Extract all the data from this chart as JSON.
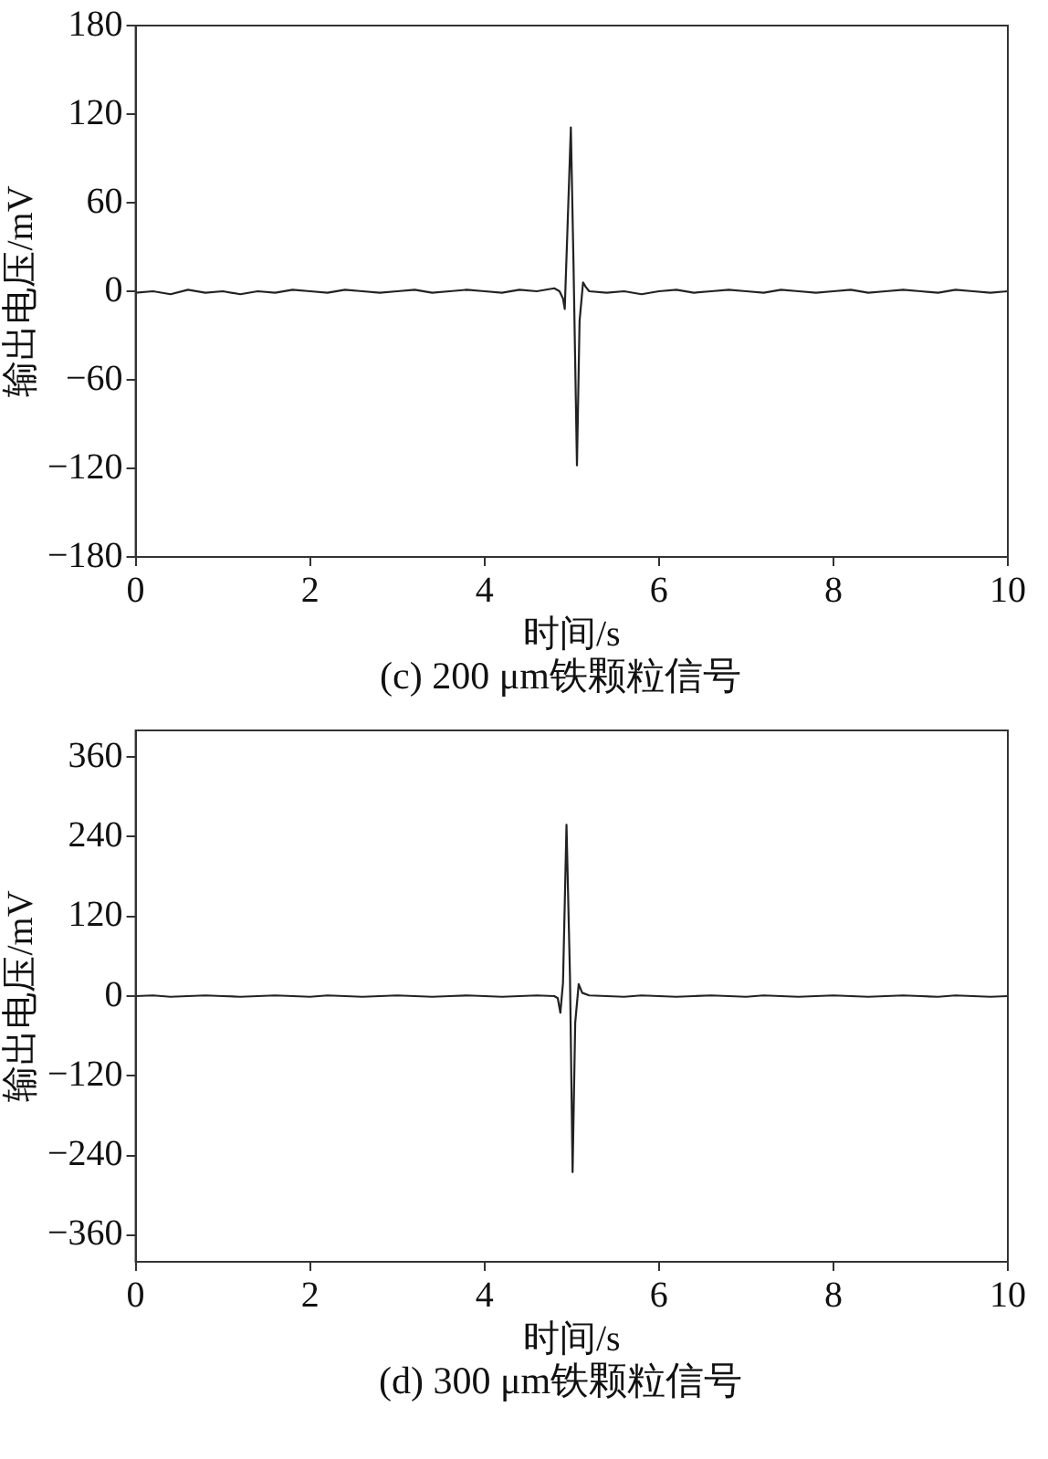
{
  "chart_data": [
    {
      "type": "line",
      "title": "(c) 200 μm铁颗粒信号",
      "xlabel": "时间/s",
      "ylabel": "输出电压/mV",
      "xlim": [
        0,
        10
      ],
      "xticks": [
        0,
        2,
        4,
        6,
        8,
        10
      ],
      "ylim": [
        -180,
        180
      ],
      "yticks": [
        -180,
        -120,
        -60,
        0,
        60,
        120,
        180
      ],
      "grid": false,
      "legend": false,
      "marker": "none",
      "line_style": "solid",
      "series": [
        {
          "color": "#222222",
          "x": [
            0,
            0.2,
            0.4,
            0.6,
            0.8,
            1,
            1.2,
            1.4,
            1.6,
            1.8,
            2,
            2.2,
            2.4,
            2.6,
            2.8,
            3,
            3.2,
            3.4,
            3.6,
            3.8,
            4,
            4.2,
            4.4,
            4.6,
            4.8,
            4.86,
            4.9,
            4.92,
            4.95,
            4.99,
            5.02,
            5.06,
            5.09,
            5.13,
            5.16,
            5.2,
            5.4,
            5.6,
            5.8,
            6,
            6.2,
            6.4,
            6.6,
            6.8,
            7,
            7.2,
            7.4,
            7.6,
            7.8,
            8,
            8.2,
            8.4,
            8.6,
            8.8,
            9,
            9.2,
            9.4,
            9.6,
            9.8,
            10
          ],
          "values": [
            -1,
            0,
            -2,
            1,
            -1,
            0,
            -2,
            0,
            -1,
            1,
            0,
            -1,
            1,
            0,
            -1,
            0,
            1,
            -1,
            0,
            1,
            0,
            -1,
            1,
            0,
            2,
            0,
            -5,
            -12,
            40,
            111,
            20,
            -118,
            -20,
            6,
            3,
            0,
            -1,
            0,
            -2,
            0,
            1,
            -1,
            0,
            1,
            0,
            -1,
            1,
            0,
            -1,
            0,
            1,
            -1,
            0,
            1,
            0,
            -1,
            1,
            0,
            -1,
            0
          ]
        }
      ]
    },
    {
      "type": "line",
      "title": "(d) 300 μm铁颗粒信号",
      "xlabel": "时间/s",
      "ylabel": "输出电压/mV",
      "xlim": [
        0,
        10
      ],
      "xticks": [
        0,
        2,
        4,
        6,
        8,
        10
      ],
      "ylim": [
        -400,
        400
      ],
      "yticks": [
        -360,
        -240,
        -120,
        0,
        120,
        240,
        360
      ],
      "grid": false,
      "legend": false,
      "marker": "none",
      "line_style": "solid",
      "series": [
        {
          "color": "#222222",
          "x": [
            0,
            0.2,
            0.4,
            0.6,
            0.8,
            1,
            1.2,
            1.4,
            1.6,
            1.8,
            2,
            2.2,
            2.4,
            2.6,
            2.8,
            3,
            3.2,
            3.4,
            3.6,
            3.8,
            4,
            4.2,
            4.4,
            4.6,
            4.8,
            4.84,
            4.87,
            4.9,
            4.94,
            4.98,
            5.01,
            5.04,
            5.08,
            5.12,
            5.2,
            5.4,
            5.6,
            5.8,
            6,
            6.2,
            6.4,
            6.6,
            6.8,
            7,
            7.2,
            7.4,
            7.6,
            7.8,
            8,
            8.2,
            8.4,
            8.6,
            8.8,
            9,
            9.2,
            9.4,
            9.6,
            9.8,
            10
          ],
          "values": [
            0,
            1,
            -1,
            0,
            1,
            0,
            -1,
            0,
            1,
            0,
            -1,
            1,
            0,
            -1,
            0,
            1,
            0,
            -1,
            0,
            1,
            0,
            -1,
            0,
            1,
            0,
            -3,
            -25,
            20,
            258,
            30,
            -265,
            -40,
            18,
            5,
            1,
            0,
            -1,
            1,
            0,
            -1,
            0,
            1,
            0,
            -1,
            1,
            0,
            -1,
            0,
            1,
            0,
            -1,
            0,
            1,
            0,
            -1,
            1,
            0,
            -1,
            0
          ]
        }
      ]
    }
  ]
}
